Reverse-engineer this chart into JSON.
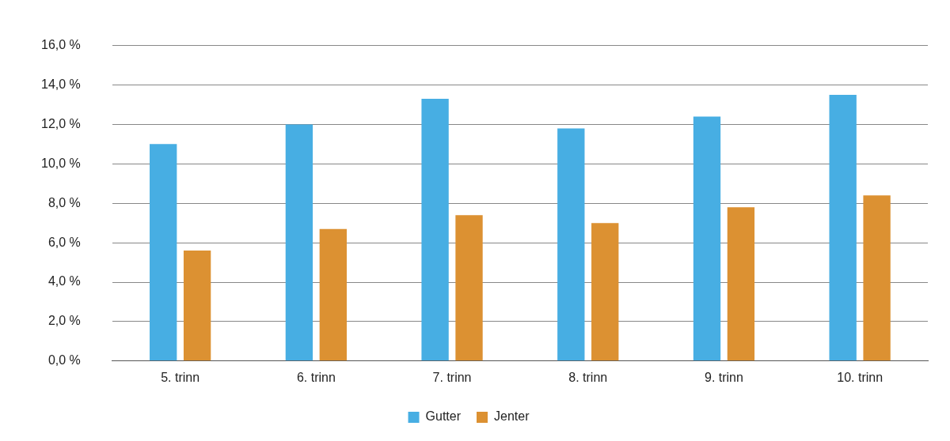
{
  "chart_data": {
    "type": "bar",
    "categories": [
      "5. trinn",
      "6. trinn",
      "7. trinn",
      "8. trinn",
      "9. trinn",
      "10. trinn"
    ],
    "series": [
      {
        "name": "Gutter",
        "color": "#47aee3",
        "values": [
          11.0,
          12.0,
          13.3,
          11.8,
          12.4,
          13.5
        ]
      },
      {
        "name": "Jenter",
        "color": "#dc9132",
        "values": [
          5.6,
          6.7,
          7.4,
          7.0,
          7.8,
          8.4
        ]
      }
    ],
    "ylim": [
      0,
      16
    ],
    "yticks": [
      {
        "value": 0,
        "label": "0,0 %"
      },
      {
        "value": 2,
        "label": "2,0 %"
      },
      {
        "value": 4,
        "label": "4,0 %"
      },
      {
        "value": 6,
        "label": "6,0 %"
      },
      {
        "value": 8,
        "label": "8,0 %"
      },
      {
        "value": 10,
        "label": "10,0 %"
      },
      {
        "value": 12,
        "label": "12,0 %"
      },
      {
        "value": 14,
        "label": "14,0 %"
      },
      {
        "value": 16,
        "label": "16,0 %"
      }
    ],
    "grid": "y",
    "legend": "bottom"
  }
}
